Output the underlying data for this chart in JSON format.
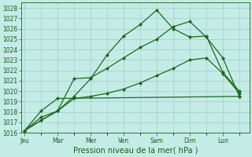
{
  "title": "",
  "xlabel": "Pression niveau de la mer( hPa )",
  "ylabel": "",
  "background_color": "#c5ebe7",
  "grid_color": "#9eccc6",
  "line_color": "#1a6b1a",
  "ylim": [
    1016,
    1028.5
  ],
  "days": [
    "Jeu",
    "Mar",
    "Mer",
    "Ven",
    "Sam",
    "Dim",
    "Lun"
  ],
  "day_x": [
    0,
    1,
    2,
    3,
    4,
    5,
    6
  ],
  "xlim": [
    -0.1,
    6.8
  ],
  "series": [
    {
      "x": [
        0,
        0.5,
        1.0,
        1.5,
        2.0,
        2.5,
        3.0,
        3.5,
        4.0,
        4.5,
        5.0,
        5.5,
        6.0,
        6.5
      ],
      "y": [
        1016.2,
        1017.2,
        1018.1,
        1019.5,
        1021.2,
        1023.5,
        1025.3,
        1026.4,
        1027.8,
        1026.0,
        1025.2,
        1025.3,
        1021.8,
        1020.0
      ]
    },
    {
      "x": [
        0,
        0.5,
        1.0,
        1.5,
        2.0,
        2.5,
        3.0,
        3.5,
        4.0,
        4.5,
        5.0,
        5.5,
        6.0,
        6.5
      ],
      "y": [
        1016.2,
        1017.2,
        1018.1,
        1021.2,
        1021.3,
        1022.2,
        1023.2,
        1024.2,
        1025.0,
        1026.2,
        1026.7,
        1025.2,
        1023.2,
        1019.5
      ]
    },
    {
      "x": [
        0,
        0.5,
        1.0,
        6.5
      ],
      "y": [
        1016.2,
        1018.1,
        1019.3,
        1019.5
      ]
    },
    {
      "x": [
        0,
        0.5,
        1.0,
        1.5,
        2.0,
        2.5,
        3.0,
        3.5,
        4.0,
        4.5,
        5.0,
        5.5,
        6.0,
        6.5
      ],
      "y": [
        1016.2,
        1017.5,
        1018.1,
        1019.3,
        1019.5,
        1019.8,
        1020.2,
        1020.8,
        1021.5,
        1022.2,
        1023.0,
        1023.2,
        1021.7,
        1019.8
      ]
    }
  ],
  "yticks": [
    1016,
    1017,
    1018,
    1019,
    1020,
    1021,
    1022,
    1023,
    1024,
    1025,
    1026,
    1027,
    1028
  ],
  "tick_fontsize": 5.5,
  "label_fontsize": 7,
  "marker": "D",
  "markersize": 2.0,
  "linewidth": 0.9
}
